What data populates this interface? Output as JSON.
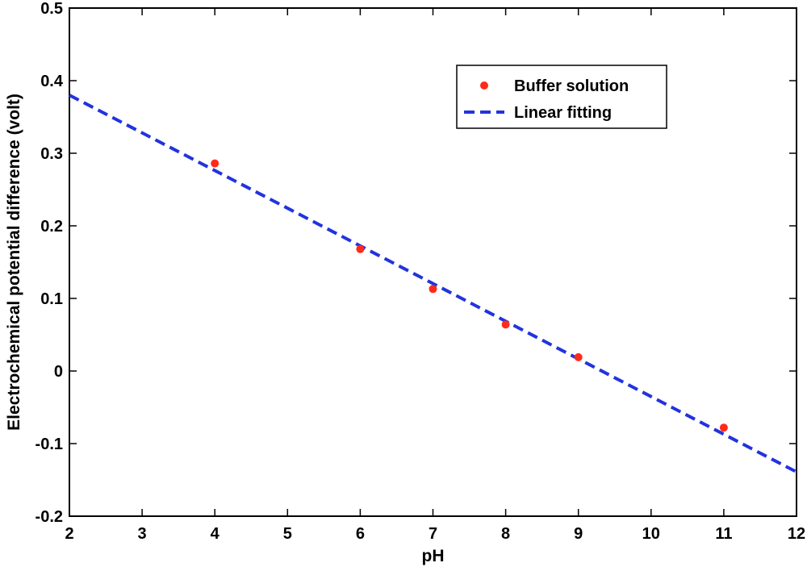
{
  "chart_data": {
    "type": "scatter",
    "xlabel": "pH",
    "ylabel": "Electrochemical potential difference (volt)",
    "xlim": [
      2,
      12
    ],
    "ylim": [
      -0.2,
      0.5
    ],
    "xticks": [
      "2",
      "3",
      "4",
      "5",
      "6",
      "7",
      "8",
      "9",
      "10",
      "11",
      "12"
    ],
    "yticks": [
      "-0.2",
      "-0.1",
      "0",
      "0.1",
      "0.2",
      "0.3",
      "0.4",
      "0.5"
    ],
    "grid": false,
    "legend_position": "top-right",
    "series": [
      {
        "name": "Buffer solution",
        "kind": "scatter",
        "color": "#ff2a1a",
        "x": [
          4,
          6,
          7,
          8,
          9,
          11
        ],
        "y": [
          0.286,
          0.168,
          0.113,
          0.064,
          0.019,
          -0.078
        ]
      },
      {
        "name": "Linear fitting",
        "kind": "line",
        "style": "dashed",
        "color": "#2233dd",
        "x": [
          2,
          12
        ],
        "y": [
          0.38,
          -0.139
        ]
      }
    ]
  }
}
